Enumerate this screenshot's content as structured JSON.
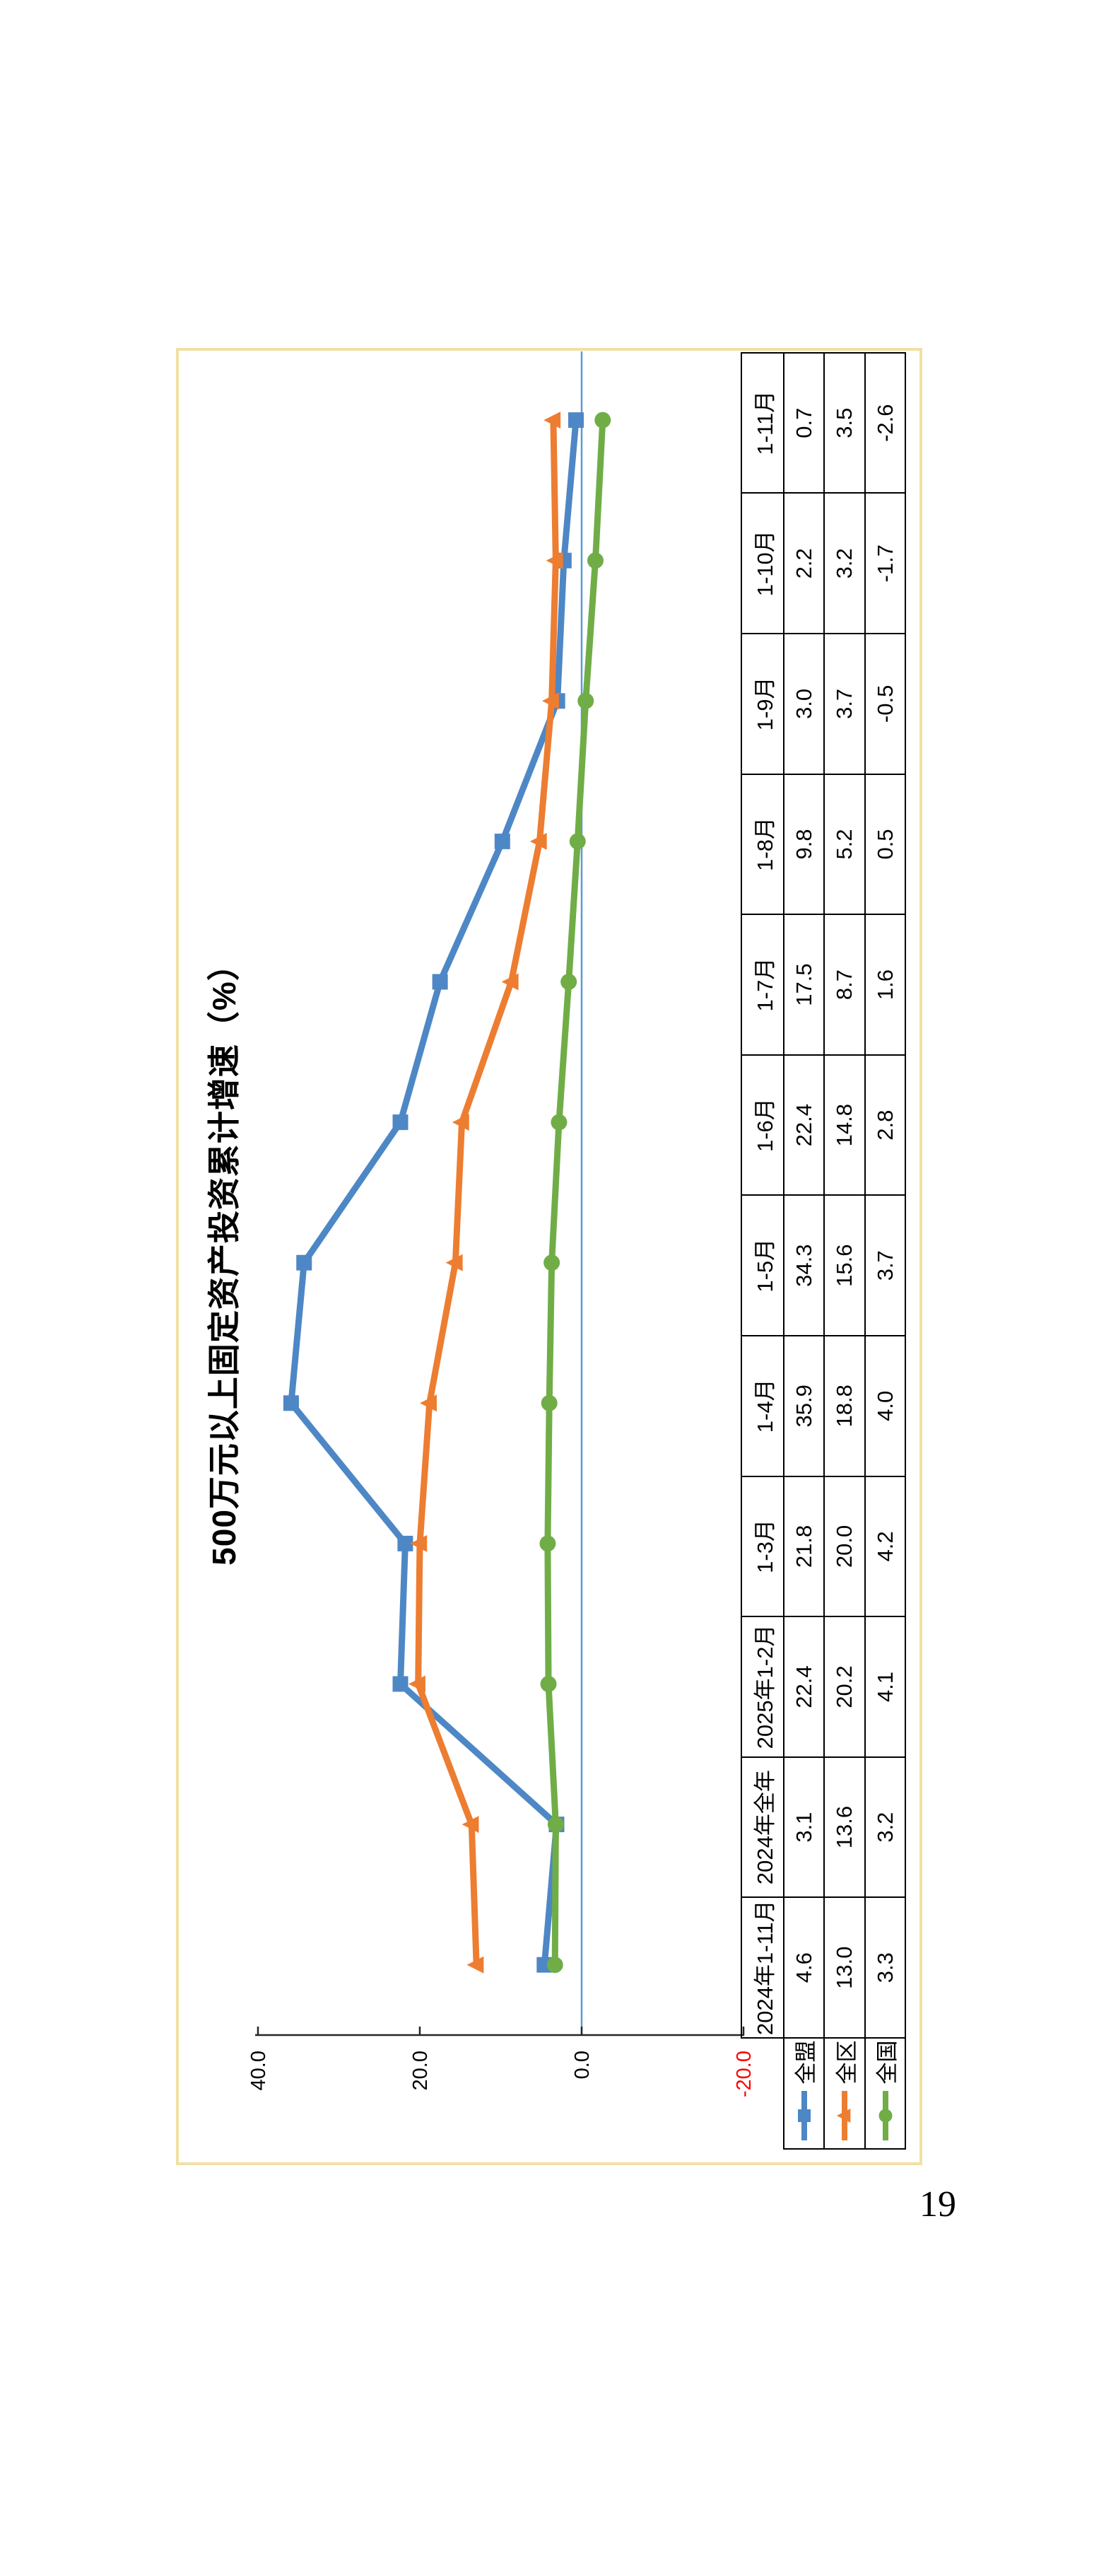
{
  "page": {
    "number": "19"
  },
  "frame": {
    "border_color": "#f1e0a3"
  },
  "chart_data": {
    "type": "line",
    "title": "500万元以上固定资产投资累计增速（%）",
    "categories": [
      "2024年1-11月",
      "2024年全年",
      "2025年1-2月",
      "1-3月",
      "1-4月",
      "1-5月",
      "1-6月",
      "1-7月",
      "1-8月",
      "1-9月",
      "1-10月",
      "1-11月"
    ],
    "series": [
      {
        "name": "全盟",
        "marker": "square",
        "color": "#4e87c5",
        "values": [
          4.6,
          3.1,
          22.4,
          21.8,
          35.9,
          34.3,
          22.4,
          17.5,
          9.8,
          3.0,
          2.2,
          0.7
        ]
      },
      {
        "name": "全区",
        "marker": "triangle",
        "color": "#ed7d31",
        "values": [
          13.0,
          13.6,
          20.2,
          20.0,
          18.8,
          15.6,
          14.8,
          8.7,
          5.2,
          3.7,
          3.2,
          3.5
        ]
      },
      {
        "name": "全国",
        "marker": "circle",
        "color": "#70ad47",
        "values": [
          3.3,
          3.2,
          4.1,
          4.2,
          4.0,
          3.7,
          2.8,
          1.6,
          0.5,
          -0.5,
          -1.7,
          -2.6
        ]
      }
    ],
    "ylim": [
      -20,
      40
    ],
    "y_ticks": [
      {
        "label": "40.0",
        "value": 40,
        "color": "#000000"
      },
      {
        "label": "20.0",
        "value": 20,
        "color": "#000000"
      },
      {
        "label": "0.0",
        "value": 0,
        "color": "#000000"
      },
      {
        "label": "-20.0",
        "value": -20,
        "color": "#ff0000"
      }
    ],
    "grid": false,
    "legend_position": "data-table-left",
    "data_table": true,
    "axis_color": "#262626",
    "zero_line_color": "#5b9bd5",
    "orientation": "rotated-90-ccw"
  }
}
